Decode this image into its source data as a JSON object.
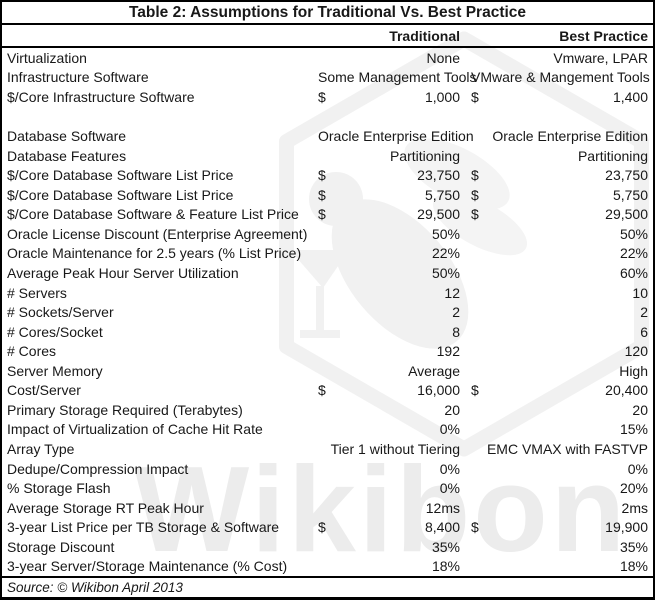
{
  "title": "Table 2: Assumptions for Traditional Vs. Best Practice",
  "columns": {
    "traditional": "Traditional",
    "best_practice": "Best Practice"
  },
  "rows": [
    {
      "label": "Virtualization",
      "t_cur": "",
      "t_val": "None",
      "b_cur": "",
      "b_val": "Vmware, LPAR"
    },
    {
      "label": "Infrastructure Software",
      "t_cur": "",
      "t_val": "Some Management Tools",
      "b_cur": "",
      "b_val": "VMware & Mangement Tools"
    },
    {
      "label": "$/Core Infrastructure Software",
      "t_cur": "$",
      "t_val": "1,000",
      "b_cur": "$",
      "b_val": "1,400"
    },
    {
      "label": "",
      "t_cur": "",
      "t_val": "",
      "b_cur": "",
      "b_val": ""
    },
    {
      "label": "Database Software",
      "t_cur": "",
      "t_val": "Oracle Enterprise Edition",
      "b_cur": "",
      "b_val": "Oracle Enterprise Edition"
    },
    {
      "label": "Database Features",
      "t_cur": "",
      "t_val": "Partitioning",
      "b_cur": "",
      "b_val": "Partitioning"
    },
    {
      "label": "$/Core Database Software List Price",
      "t_cur": "$",
      "t_val": "23,750",
      "b_cur": "$",
      "b_val": "23,750"
    },
    {
      "label": "$/Core Database Software List Price",
      "t_cur": "$",
      "t_val": "5,750",
      "b_cur": "$",
      "b_val": "5,750"
    },
    {
      "label": "$/Core Database Software & Feature List Price",
      "t_cur": "$",
      "t_val": "29,500",
      "b_cur": "$",
      "b_val": "29,500"
    },
    {
      "label": "Oracle License Discount (Enterprise Agreement)",
      "t_cur": "",
      "t_val": "50%",
      "b_cur": "",
      "b_val": "50%"
    },
    {
      "label": "Oracle Maintenance for 2.5 years (% List Price)",
      "t_cur": "",
      "t_val": "22%",
      "b_cur": "",
      "b_val": "22%"
    },
    {
      "label": "Average Peak Hour Server Utilization",
      "t_cur": "",
      "t_val": "50%",
      "b_cur": "",
      "b_val": "60%"
    },
    {
      "label": "# Servers",
      "t_cur": "",
      "t_val": "12",
      "b_cur": "",
      "b_val": "10"
    },
    {
      "label": "# Sockets/Server",
      "t_cur": "",
      "t_val": "2",
      "b_cur": "",
      "b_val": "2"
    },
    {
      "label": "# Cores/Socket",
      "t_cur": "",
      "t_val": "8",
      "b_cur": "",
      "b_val": "6"
    },
    {
      "label": "# Cores",
      "t_cur": "",
      "t_val": "192",
      "b_cur": "",
      "b_val": "120"
    },
    {
      "label": "Server Memory",
      "t_cur": "",
      "t_val": "Average",
      "b_cur": "",
      "b_val": "High"
    },
    {
      "label": "Cost/Server",
      "t_cur": "$",
      "t_val": "16,000",
      "b_cur": "$",
      "b_val": "20,400"
    },
    {
      "label": "Primary Storage Required (Terabytes)",
      "t_cur": "",
      "t_val": "20",
      "b_cur": "",
      "b_val": "20"
    },
    {
      "label": "Impact of Virtualization of Cache Hit Rate",
      "t_cur": "",
      "t_val": "0%",
      "b_cur": "",
      "b_val": "15%"
    },
    {
      "label": "Array Type",
      "t_cur": "",
      "t_val": "Tier 1 without Tiering",
      "b_cur": "",
      "b_val": "EMC VMAX with FASTVP"
    },
    {
      "label": "Dedupe/Compression Impact",
      "t_cur": "",
      "t_val": "0%",
      "b_cur": "",
      "b_val": "0%"
    },
    {
      "label": "% Storage Flash",
      "t_cur": "",
      "t_val": "0%",
      "b_cur": "",
      "b_val": "20%"
    },
    {
      "label": "Average Storage RT Peak Hour",
      "t_cur": "",
      "t_val": "12ms",
      "b_cur": "",
      "b_val": "2ms"
    },
    {
      "label": "3-year List Price per TB Storage & Software",
      "t_cur": "$",
      "t_val": "8,400",
      "b_cur": "$",
      "b_val": "19,900"
    },
    {
      "label": "Storage Discount",
      "t_cur": "",
      "t_val": "35%",
      "b_cur": "",
      "b_val": "35%"
    },
    {
      "label": "3-year Server/Storage Maintenance (% Cost)",
      "t_cur": "",
      "t_val": "18%",
      "b_cur": "",
      "b_val": "18%"
    }
  ],
  "source": "Source: © Wikibon April 2013",
  "watermark": {
    "text": "Wikibon",
    "logo": "wikibon-bee-hexagon-logo",
    "shape_color": "#f1f1f1",
    "text_color": "#ececec"
  },
  "colors": {
    "border": "#000000",
    "text": "#181818",
    "background": "#ffffff"
  }
}
